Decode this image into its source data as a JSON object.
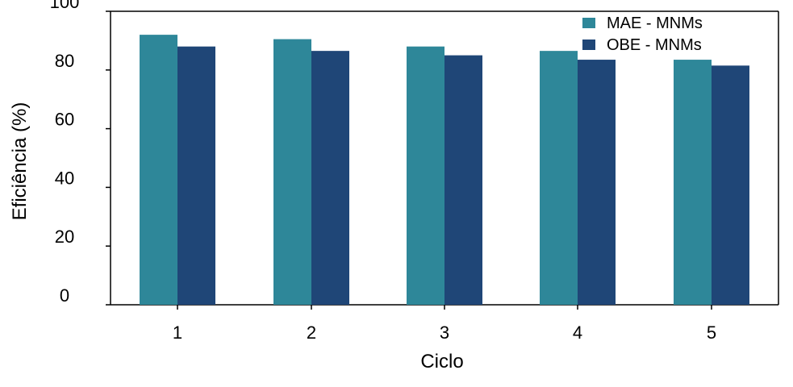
{
  "chart_data": {
    "type": "bar",
    "categories": [
      "1",
      "2",
      "3",
      "4",
      "5"
    ],
    "series": [
      {
        "name": "MAE - MNMs",
        "color": "#2e8799",
        "values": [
          92,
          90.5,
          88,
          86.5,
          83.5
        ]
      },
      {
        "name": "OBE - MNMs",
        "color": "#1f4677",
        "values": [
          88,
          86.5,
          85,
          83.5,
          81.5
        ]
      }
    ],
    "xlabel": "Ciclo",
    "ylabel": "Eficiência (%)",
    "ylim": [
      0,
      100
    ],
    "yticks": [
      0,
      20,
      40,
      60,
      80,
      100
    ],
    "grid": false,
    "legend_position": "top-right"
  }
}
